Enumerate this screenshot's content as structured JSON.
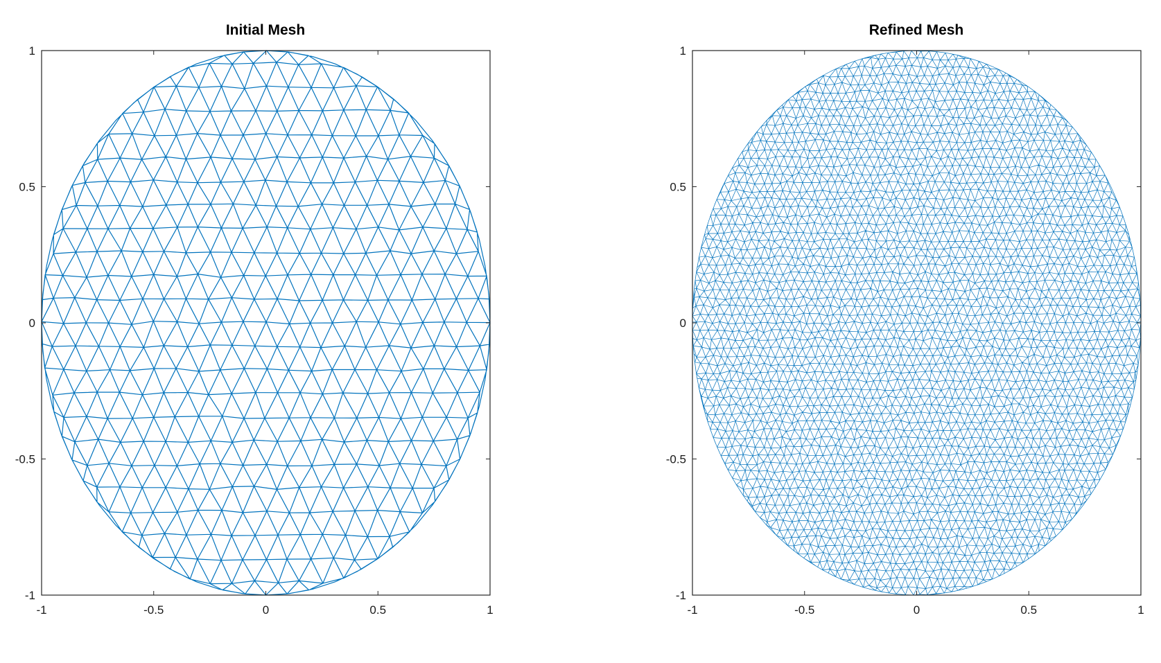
{
  "chart_data": [
    {
      "type": "mesh",
      "title": "Initial Mesh",
      "xlabel": "",
      "ylabel": "",
      "xlim": [
        -1,
        1
      ],
      "ylim": [
        -1,
        1
      ],
      "xticks": [
        "-1",
        "-0.5",
        "0",
        "0.5",
        "1"
      ],
      "yticks": [
        "-1",
        "-0.5",
        "0",
        "0.5",
        "1"
      ],
      "grid": false,
      "domain": "ellipse, semi-axes x=1, y=1",
      "mesh_spacing": 0.1,
      "refined": false,
      "color": "#0072bd"
    },
    {
      "type": "mesh",
      "title": "Refined Mesh",
      "xlabel": "",
      "ylabel": "",
      "xlim": [
        -1,
        1
      ],
      "ylim": [
        -1,
        1
      ],
      "xticks": [
        "-1",
        "-0.5",
        "0",
        "0.5",
        "1"
      ],
      "yticks": [
        "-1",
        "-0.5",
        "0",
        "0.5",
        "1"
      ],
      "grid": false,
      "domain": "ellipse, semi-axes x=1, y=1",
      "mesh_spacing": 0.035,
      "refined": true,
      "color": "#0072bd"
    }
  ]
}
